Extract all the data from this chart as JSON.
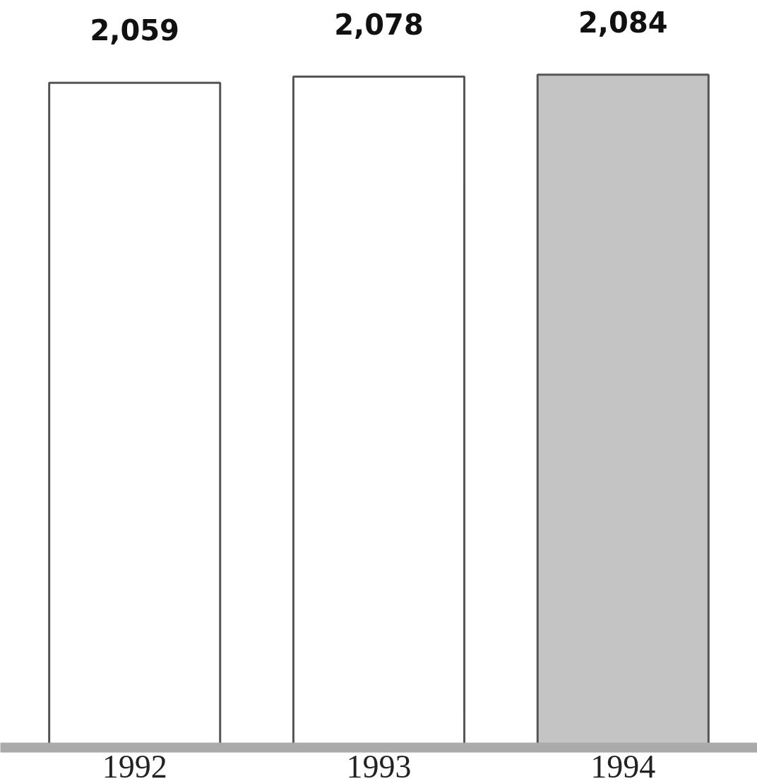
{
  "chart_data": {
    "type": "bar",
    "categories": [
      "1992",
      "1993",
      "1994"
    ],
    "values": [
      2059,
      2078,
      2084
    ],
    "colors": [
      "#ffffff",
      "#ffffff",
      "#c4c4c4"
    ],
    "value_labels": [
      "2,059",
      "2,078",
      "2,084"
    ],
    "grid": false
  }
}
